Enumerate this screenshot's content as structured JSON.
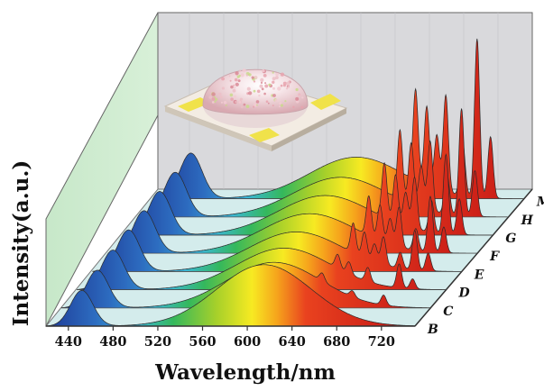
{
  "chart_data": {
    "type": "area",
    "style": "3d-waterfall",
    "xlabel": "Wavelength/nm",
    "ylabel": "Intensity(a.u.)",
    "xlim": [
      420,
      750
    ],
    "xticks": [
      440,
      480,
      520,
      560,
      600,
      640,
      680,
      720
    ],
    "fill": "visible-spectrum gradient under each curve",
    "inset_image": "white LED package",
    "series": [
      {
        "name": "B",
        "blue_peak": 0.36,
        "broad_peak": 0.62,
        "broad_center": 615,
        "broad_width": 42,
        "lines": []
      },
      {
        "name": "C",
        "blue_peak": 0.38,
        "broad_peak": 0.46,
        "broad_center": 610,
        "broad_width": 42,
        "lines": [
          {
            "x": 653,
            "h": 0.08
          },
          {
            "x": 680,
            "h": 0.06
          },
          {
            "x": 708,
            "h": 0.1
          }
        ]
      },
      {
        "name": "D",
        "blue_peak": 0.4,
        "broad_peak": 0.42,
        "broad_center": 605,
        "broad_width": 42,
        "lines": [
          {
            "x": 653,
            "h": 0.14
          },
          {
            "x": 663,
            "h": 0.12
          },
          {
            "x": 680,
            "h": 0.14
          },
          {
            "x": 708,
            "h": 0.24
          },
          {
            "x": 720,
            "h": 0.1
          }
        ]
      },
      {
        "name": "E",
        "blue_peak": 0.42,
        "broad_peak": 0.4,
        "broad_center": 602,
        "broad_width": 42,
        "lines": [
          {
            "x": 653,
            "h": 0.3
          },
          {
            "x": 663,
            "h": 0.26
          },
          {
            "x": 672,
            "h": 0.18
          },
          {
            "x": 680,
            "h": 0.28
          },
          {
            "x": 695,
            "h": 0.16
          },
          {
            "x": 708,
            "h": 0.4
          },
          {
            "x": 720,
            "h": 0.18
          }
        ]
      },
      {
        "name": "F",
        "blue_peak": 0.43,
        "broad_peak": 0.4,
        "broad_center": 600,
        "broad_width": 42,
        "lines": [
          {
            "x": 653,
            "h": 0.4
          },
          {
            "x": 663,
            "h": 0.36
          },
          {
            "x": 672,
            "h": 0.26
          },
          {
            "x": 680,
            "h": 0.4
          },
          {
            "x": 695,
            "h": 0.22
          },
          {
            "x": 708,
            "h": 0.56
          },
          {
            "x": 720,
            "h": 0.26
          }
        ]
      },
      {
        "name": "G",
        "blue_peak": 0.44,
        "broad_peak": 0.4,
        "broad_center": 600,
        "broad_width": 42,
        "lines": [
          {
            "x": 653,
            "h": 0.55
          },
          {
            "x": 663,
            "h": 0.48
          },
          {
            "x": 672,
            "h": 0.34
          },
          {
            "x": 680,
            "h": 0.52
          },
          {
            "x": 695,
            "h": 0.32
          },
          {
            "x": 708,
            "h": 0.8
          },
          {
            "x": 720,
            "h": 0.36
          }
        ]
      },
      {
        "name": "H",
        "blue_peak": 0.45,
        "broad_peak": 0.4,
        "broad_center": 600,
        "broad_width": 42,
        "lines": [
          {
            "x": 653,
            "h": 0.7
          },
          {
            "x": 663,
            "h": 0.62
          },
          {
            "x": 672,
            "h": 0.42
          },
          {
            "x": 680,
            "h": 0.7
          },
          {
            "x": 695,
            "h": 0.4
          },
          {
            "x": 708,
            "h": 1.08
          },
          {
            "x": 720,
            "h": 0.46
          }
        ]
      },
      {
        "name": "M",
        "blue_peak": 0.46,
        "broad_peak": 0.42,
        "broad_center": 600,
        "broad_width": 42,
        "lines": [
          {
            "x": 653,
            "h": 0.92
          },
          {
            "x": 663,
            "h": 0.8
          },
          {
            "x": 672,
            "h": 0.55
          },
          {
            "x": 680,
            "h": 0.98
          },
          {
            "x": 695,
            "h": 0.55
          },
          {
            "x": 708,
            "h": 1.6
          },
          {
            "x": 720,
            "h": 0.62
          }
        ]
      }
    ]
  }
}
